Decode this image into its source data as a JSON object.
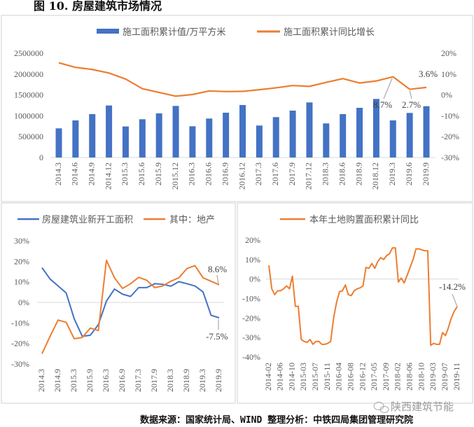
{
  "title": "图 10. 房屋建筑市场情况",
  "footer": "数据来源：国家统计局、WIND  整理分析：中铁四局集团管理研究院",
  "watermark": "陕西建筑节能",
  "colors": {
    "blue": "#4472C4",
    "orange": "#ED7D31",
    "grid": "#d9d9d9",
    "border": "#d0d0d0"
  },
  "chart_data": [
    {
      "type": "bar+line",
      "title": "",
      "legend": [
        "施工面积累计值/万平方米",
        "施工面积累计同比增长"
      ],
      "legend_placement": "top",
      "categories": [
        "2014.3",
        "2014.6",
        "2014.9",
        "2014.12",
        "2015.3",
        "2015.6",
        "2015.9",
        "2015.12",
        "2016.3",
        "2016.6",
        "2016.9",
        "2016.12",
        "2017.3",
        "2017.6",
        "2017.9",
        "2017.12",
        "2018.3",
        "2018.6",
        "2018.9",
        "2018.12",
        "2019.3",
        "2019.6",
        "2019.9"
      ],
      "series": [
        {
          "name": "施工面积累计值/万平方米",
          "axis": "left",
          "kind": "bar",
          "values": [
            699000,
            889000,
            1040000,
            1247000,
            744000,
            917000,
            1057000,
            1236000,
            749000,
            934000,
            1074000,
            1258000,
            766000,
            968000,
            1124000,
            1320000,
            817000,
            1040000,
            1191000,
            1404000,
            889000,
            1068000,
            1230000
          ]
        },
        {
          "name": "施工面积累计同比增长",
          "axis": "right",
          "kind": "line",
          "values": [
            15.4,
            13.2,
            12.2,
            10.5,
            7.6,
            3.0,
            1.2,
            -0.6,
            0.2,
            1.9,
            1.6,
            1.7,
            2.5,
            3.4,
            4.5,
            4.1,
            6.0,
            7.8,
            5.7,
            6.7,
            8.7,
            2.7,
            3.6
          ]
        }
      ],
      "left_ylim": [
        0,
        2500000
      ],
      "left_ticks": [
        "0",
        "500000",
        "1000000",
        "1500000",
        "2000000",
        "2500000"
      ],
      "right_ylim": [
        -30,
        20
      ],
      "right_ticks": [
        "-30%",
        "-20%",
        "-10%",
        "0%",
        "10%",
        "20%"
      ],
      "annotations": [
        "8.7%",
        "2.7%",
        "3.6%"
      ]
    },
    {
      "type": "line",
      "legend": [
        "房屋建筑业新开工面积",
        "其中：地产"
      ],
      "legend_placement": "top",
      "x": [
        "2014.3",
        "2014.6",
        "2014.9",
        "2014.12",
        "2015.3",
        "2015.6",
        "2015.9",
        "2015.12",
        "2016.3",
        "2016.6",
        "2016.9",
        "2016.12",
        "2017.3",
        "2017.6",
        "2017.9",
        "2017.12",
        "2018.3",
        "2018.6",
        "2018.9",
        "2018.12",
        "2019.3",
        "2019.6",
        "2019.9"
      ],
      "tick_labels": [
        "2014.3",
        "2014.9",
        "2015.3",
        "2015.9",
        "2016.3",
        "2016.9",
        "2017.3",
        "2017.9",
        "2018.3",
        "2018.9",
        "2019.3",
        "2019.9"
      ],
      "series": [
        {
          "name": "房屋建筑业新开工面积",
          "values": [
            16.9,
            11.4,
            8.0,
            4.6,
            -8.0,
            -16.5,
            -16.0,
            -10.8,
            0.6,
            6.5,
            4.0,
            2.9,
            7.2,
            7.2,
            9.1,
            8.8,
            7.9,
            10.1,
            9.1,
            8.0,
            5.1,
            -6.3,
            -7.5
          ]
        },
        {
          "name": "其中：地产",
          "values": [
            -25.0,
            -16.5,
            -8.6,
            -9.7,
            -17.7,
            -17.1,
            -12.5,
            -13.7,
            20.5,
            12.0,
            6.8,
            9.1,
            12.2,
            10.8,
            7.2,
            8.0,
            10.3,
            12.0,
            16.5,
            17.9,
            12.0,
            10.3,
            8.6
          ]
        }
      ],
      "ylim": [
        -30,
        30
      ],
      "y_ticks": [
        "-30%",
        "-20%",
        "-10%",
        "0%",
        "10%",
        "20%",
        "30%"
      ],
      "annotations": [
        "8.6%",
        "-7.5%"
      ]
    },
    {
      "type": "line",
      "legend": [
        "本年土地购置面积累计同比"
      ],
      "legend_placement": "top",
      "tick_labels": [
        "2014-02",
        "2014-06",
        "2014-10",
        "2015-03",
        "2015-07",
        "2015-11",
        "2016-04",
        "2016-08",
        "2016-12",
        "2017-05",
        "2017-09",
        "2018-02",
        "2018-06",
        "2018-10",
        "2019-03",
        "2019-07",
        "2019-11"
      ],
      "series": [
        {
          "name": "本年土地购置面积累计同比",
          "values": [
            7,
            -5,
            -8,
            -6,
            -6,
            -5,
            -3.5,
            -5,
            1.5,
            -14,
            -14,
            -31,
            -32,
            -32.5,
            -31,
            -33.5,
            -32,
            -32,
            -33.5,
            -33.5,
            -33,
            -32,
            -20,
            -12,
            -6.5,
            -6,
            -3,
            -8,
            -8.5,
            -6,
            -5,
            -4.5,
            -3.5,
            6,
            5.5,
            8,
            5.5,
            9,
            11,
            10,
            12,
            13,
            16,
            16,
            -1.5,
            0.5,
            -2,
            2,
            6,
            10,
            15.5,
            15.5,
            15,
            14.5,
            14.5,
            -34,
            -33,
            -33.5,
            -33.5,
            -27.5,
            -29,
            -25,
            -20,
            -16.5,
            -14.2
          ]
        }
      ],
      "ylim": [
        -40,
        20
      ],
      "y_ticks": [
        "-40%",
        "-30%",
        "-20%",
        "-10%",
        "0%",
        "10%",
        "20%"
      ],
      "annotations": [
        "-14.2%"
      ]
    }
  ]
}
